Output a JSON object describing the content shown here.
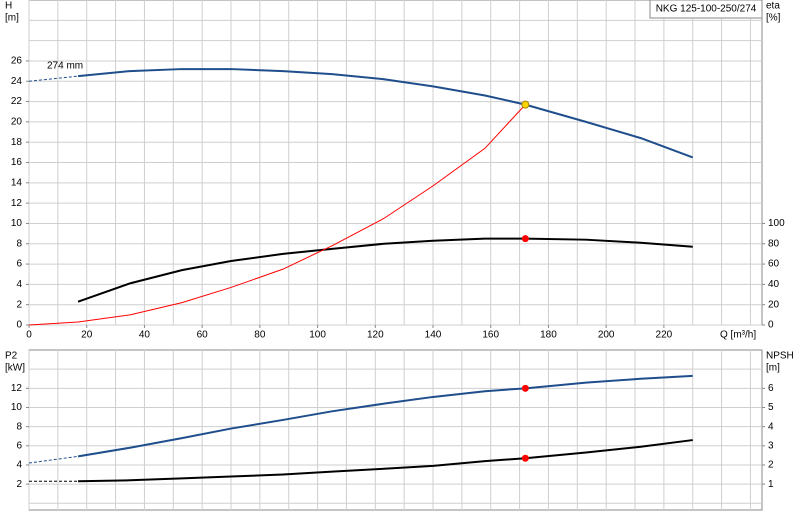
{
  "chart_data": [
    {
      "type": "line",
      "title": "NKG 125-100-250/274",
      "annotation": "274 mm",
      "ylabel": "H",
      "yunit": "[m]",
      "y2label": "eta",
      "y2unit": "[%]",
      "xlabel": "Q [m³/h]",
      "xlim": [
        0,
        254
      ],
      "xticks": [
        0,
        20,
        40,
        60,
        80,
        100,
        120,
        140,
        160,
        180,
        200,
        220
      ],
      "xgrid": [
        0,
        10,
        20,
        30,
        40,
        50,
        60,
        70,
        80,
        90,
        100,
        110,
        120,
        130,
        140,
        150,
        160,
        170,
        180,
        190,
        200,
        210,
        220,
        230,
        240,
        250
      ],
      "ylim": [
        0,
        32
      ],
      "yticks": [
        0,
        2,
        4,
        6,
        8,
        10,
        12,
        14,
        16,
        18,
        20,
        22,
        24,
        26
      ],
      "ygrid": [
        0,
        2,
        4,
        6,
        8,
        10,
        12,
        14,
        16,
        18,
        20,
        22,
        24,
        26,
        28,
        30
      ],
      "y2lim": [
        0,
        320
      ],
      "y2ticks": [
        0,
        20,
        40,
        60,
        80,
        100
      ],
      "series": [
        {
          "color": "#1f4e8c",
          "width": 2,
          "dashed": true,
          "x": [
            0,
            17
          ],
          "values": [
            24,
            24.5
          ]
        },
        {
          "color": "#1f4e8c",
          "width": 2,
          "x": [
            17,
            35,
            53,
            70,
            88,
            105,
            123,
            140,
            158,
            172,
            193,
            212,
            230
          ],
          "values": [
            24.5,
            25,
            25.2,
            25.2,
            25,
            24.7,
            24.2,
            23.5,
            22.6,
            21.7,
            20,
            18.4,
            16.5
          ]
        },
        {
          "color": "#000000",
          "width": 2,
          "axis": "y2",
          "x": [
            17,
            35,
            53,
            70,
            88,
            105,
            123,
            140,
            158,
            172,
            193,
            212,
            230
          ],
          "values": [
            23,
            41,
            54,
            63,
            70,
            75,
            80,
            83,
            85,
            85,
            84,
            81,
            77
          ]
        },
        {
          "color": "#ff0000",
          "width": 1,
          "x": [
            0,
            17,
            35,
            53,
            70,
            88,
            105,
            123,
            140,
            158,
            172
          ],
          "values": [
            0,
            0.3,
            1,
            2.2,
            3.7,
            5.5,
            7.8,
            10.5,
            13.7,
            17.4,
            21.7
          ]
        }
      ],
      "points": [
        {
          "x": 172,
          "value": 21.7,
          "color": "#ffd700"
        },
        {
          "x": 172,
          "value": 85,
          "color": "#ff0000",
          "axis": "y2"
        }
      ]
    },
    {
      "type": "line",
      "ylabel": "P2",
      "yunit": "[kW]",
      "y2label": "NPSH",
      "y2unit": "[m]",
      "xlim": [
        0,
        254
      ],
      "xgrid": [
        0,
        10,
        20,
        30,
        40,
        50,
        60,
        70,
        80,
        90,
        100,
        110,
        120,
        130,
        140,
        150,
        160,
        170,
        180,
        190,
        200,
        210,
        220,
        230,
        240,
        250
      ],
      "ylim": [
        -0.7,
        16
      ],
      "yticks": [
        2,
        4,
        6,
        8,
        10,
        12
      ],
      "ygrid": [
        0,
        2,
        4,
        6,
        8,
        10,
        12,
        14
      ],
      "y2lim": [
        -0.35,
        8
      ],
      "y2ticks": [
        1,
        2,
        3,
        4,
        5,
        6
      ],
      "series": [
        {
          "color": "#1f4e8c",
          "width": 2,
          "dashed": true,
          "x": [
            0,
            17
          ],
          "values": [
            4.2,
            4.9
          ]
        },
        {
          "color": "#1f4e8c",
          "width": 2,
          "x": [
            17,
            35,
            53,
            70,
            88,
            105,
            123,
            140,
            158,
            172,
            193,
            212,
            230
          ],
          "values": [
            4.9,
            5.8,
            6.8,
            7.8,
            8.7,
            9.6,
            10.4,
            11.1,
            11.7,
            12,
            12.6,
            13,
            13.3
          ]
        },
        {
          "color": "#000000",
          "width": 2,
          "dashed": true,
          "axis": "y2",
          "x": [
            0,
            17
          ],
          "values": [
            1.15,
            1.15
          ]
        },
        {
          "color": "#000000",
          "width": 2,
          "axis": "y2",
          "x": [
            17,
            35,
            53,
            70,
            88,
            105,
            123,
            140,
            158,
            172,
            193,
            212,
            230
          ],
          "values": [
            1.15,
            1.2,
            1.3,
            1.4,
            1.5,
            1.65,
            1.8,
            1.95,
            2.2,
            2.35,
            2.65,
            2.95,
            3.3
          ]
        }
      ],
      "points": [
        {
          "x": 172,
          "value": 12,
          "color": "#ff0000"
        },
        {
          "x": 172,
          "value": 2.35,
          "color": "#ff0000",
          "axis": "y2"
        }
      ]
    }
  ]
}
